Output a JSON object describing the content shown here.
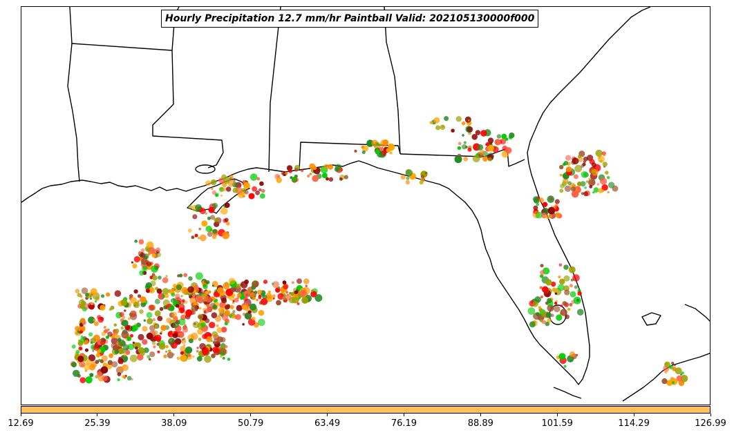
{
  "title": "Hourly Precipitation 12.7 mm/hr Paintball Valid: 202105130000f000",
  "colorbar": {
    "fill_color": "#ffbf5f",
    "ticks": [
      "12.69",
      "25.39",
      "38.09",
      "50.79",
      "63.49",
      "76.19",
      "88.89",
      "101.59",
      "114.29",
      "126.99"
    ]
  },
  "map": {
    "region": "Gulf of Mexico and Florida",
    "features": [
      "coastline",
      "state-borders"
    ],
    "paintball_colors": [
      "#ff8c00",
      "#ffa500",
      "#ff0000",
      "#8b0000",
      "#00cc00",
      "#228b22",
      "#9aa000",
      "#a0522d",
      "#ff6347"
    ]
  }
}
